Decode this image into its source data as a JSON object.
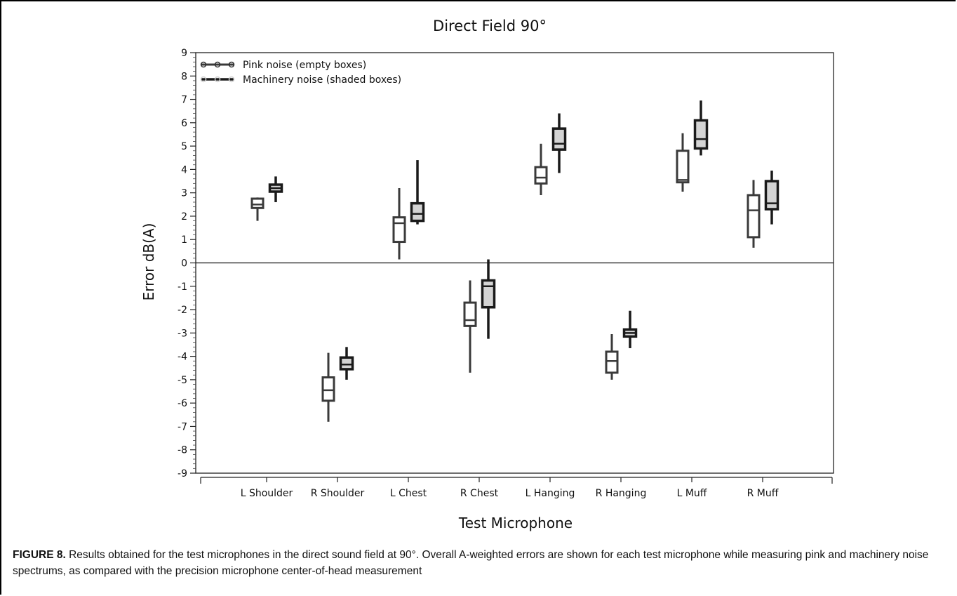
{
  "chart_data": {
    "type": "box",
    "title": "Direct Field 90°",
    "xlabel": "Test Microphone",
    "ylabel": "Error dB(A)",
    "ylim": [
      -9,
      9
    ],
    "yticks": [
      9,
      8,
      7,
      6,
      5,
      4,
      3,
      2,
      1,
      0,
      -1,
      -2,
      -3,
      -4,
      -5,
      -6,
      -7,
      -8,
      -9
    ],
    "ytick_labels": [
      "9",
      "8",
      "7",
      "6",
      "5",
      "4",
      "3",
      "2",
      "1",
      "0",
      "-1",
      "-2",
      "-3",
      "-4",
      "-5",
      "-6",
      "-7",
      "-8",
      "-9"
    ],
    "categories": [
      "L Shoulder",
      "R Shoulder",
      "L Chest",
      "R Chest",
      "L Hanging",
      "R Hanging",
      "L Muff",
      "R Muff"
    ],
    "reference_line": 0,
    "legend_position": "top-left",
    "series": [
      {
        "name": "Pink noise (empty boxes)",
        "fill": "#ffffff",
        "stroke": "#3a3a3a",
        "boxes": [
          {
            "min": 1.8,
            "q1": 2.35,
            "median": 2.5,
            "q3": 2.75,
            "max": 2.8
          },
          {
            "min": -6.8,
            "q1": -5.9,
            "median": -5.45,
            "q3": -4.9,
            "max": -3.85
          },
          {
            "min": 0.15,
            "q1": 0.9,
            "median": 1.7,
            "q3": 1.95,
            "max": 3.2
          },
          {
            "min": -4.7,
            "q1": -2.7,
            "median": -2.45,
            "q3": -1.7,
            "max": -0.75
          },
          {
            "min": 2.9,
            "q1": 3.4,
            "median": 3.65,
            "q3": 4.1,
            "max": 5.1
          },
          {
            "min": -5.0,
            "q1": -4.7,
            "median": -4.2,
            "q3": -3.8,
            "max": -3.05
          },
          {
            "min": 3.05,
            "q1": 3.45,
            "median": 3.55,
            "q3": 4.8,
            "max": 5.55
          },
          {
            "min": 0.65,
            "q1": 1.1,
            "median": 2.25,
            "q3": 2.9,
            "max": 3.55
          }
        ]
      },
      {
        "name": "Machinery noise (shaded boxes)",
        "fill": "#d4d4d4",
        "stroke": "#1a1a1a",
        "boxes": [
          {
            "min": 2.6,
            "q1": 3.05,
            "median": 3.2,
            "q3": 3.35,
            "max": 3.7
          },
          {
            "min": -5.0,
            "q1": -4.55,
            "median": -4.35,
            "q3": -4.05,
            "max": -3.6
          },
          {
            "min": 1.65,
            "q1": 1.8,
            "median": 2.1,
            "q3": 2.55,
            "max": 4.4
          },
          {
            "min": -3.25,
            "q1": -1.9,
            "median": -1.0,
            "q3": -0.75,
            "max": 0.15
          },
          {
            "min": 3.85,
            "q1": 4.85,
            "median": 5.1,
            "q3": 5.75,
            "max": 6.4
          },
          {
            "min": -3.65,
            "q1": -3.15,
            "median": -3.0,
            "q3": -2.85,
            "max": -2.05
          },
          {
            "min": 4.6,
            "q1": 4.9,
            "median": 5.3,
            "q3": 6.1,
            "max": 6.95
          },
          {
            "min": 1.65,
            "q1": 2.3,
            "median": 2.55,
            "q3": 3.5,
            "max": 3.95
          }
        ]
      }
    ]
  },
  "caption": {
    "label": "FIGURE 8.",
    "text": "Results obtained for the test microphones in the direct sound field at 90°. Overall A-weighted errors are shown for each test microphone while measuring pink and machinery noise spectrums, as compared with the precision microphone center-of-head measurement"
  }
}
